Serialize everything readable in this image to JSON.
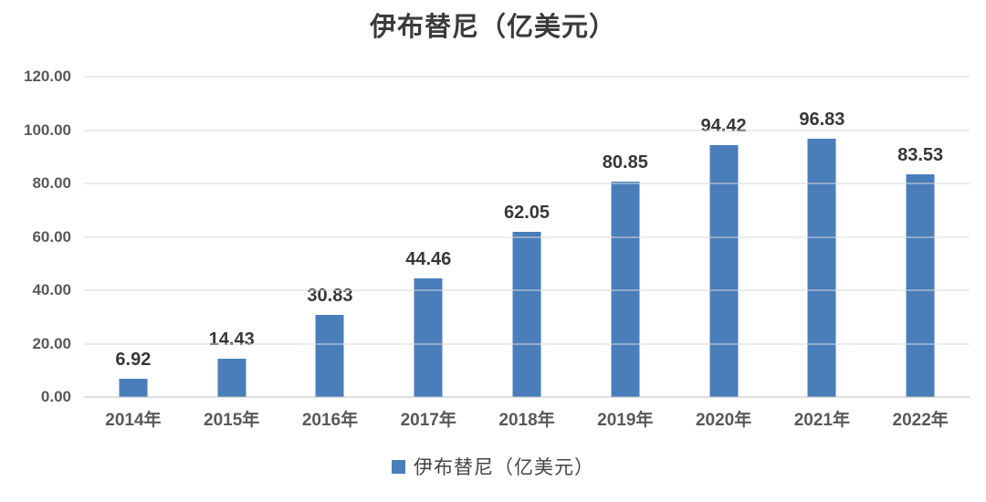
{
  "title": "伊布替尼（亿美元）",
  "colors": {
    "bar": "#4a7ebb",
    "gridline": "#d9d9d9",
    "baseline": "#bfbfbf",
    "axis_text": "#595959",
    "value_label_text": "#373737",
    "title_text": "#3b3b3b"
  },
  "legend": {
    "swatch_color": "#4a7ebb",
    "label": "伊布替尼（亿美元）"
  },
  "chart_data": {
    "type": "bar",
    "title": "伊布替尼（亿美元）",
    "categories": [
      "2014年",
      "2015年",
      "2016年",
      "2017年",
      "2018年",
      "2019年",
      "2020年",
      "2021年",
      "2022年"
    ],
    "values": [
      6.92,
      14.43,
      30.83,
      44.46,
      62.05,
      80.85,
      94.42,
      96.83,
      83.53
    ],
    "value_labels": [
      "6.92",
      "14.43",
      "30.83",
      "44.46",
      "62.05",
      "80.85",
      "94.42",
      "96.83",
      "83.53"
    ],
    "xlabel": "",
    "ylabel": "",
    "ylim": [
      0,
      120
    ],
    "ytick_step": 20,
    "ytick_labels": [
      "0.00",
      "20.00",
      "40.00",
      "60.00",
      "80.00",
      "100.00",
      "120.00"
    ],
    "grid": true,
    "legend_entries": [
      "伊布替尼（亿美元）"
    ],
    "legend_position": "bottom",
    "bar_color": "#4a7ebb"
  }
}
